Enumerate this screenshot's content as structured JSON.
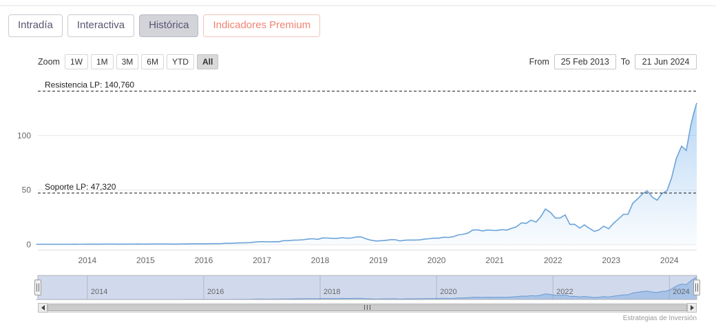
{
  "tabs": [
    {
      "label": "Intradía",
      "active": false,
      "premium": false
    },
    {
      "label": "Interactiva",
      "active": false,
      "premium": false
    },
    {
      "label": "Histórica",
      "active": true,
      "premium": false
    },
    {
      "label": "Indicadores Premium",
      "active": false,
      "premium": true
    }
  ],
  "range_selector": {
    "zoom_label": "Zoom",
    "buttons": [
      {
        "label": "1W",
        "selected": false
      },
      {
        "label": "1M",
        "selected": false
      },
      {
        "label": "3M",
        "selected": false
      },
      {
        "label": "6M",
        "selected": false
      },
      {
        "label": "YTD",
        "selected": false
      },
      {
        "label": "All",
        "selected": true
      }
    ],
    "from_label": "From",
    "from_value": "25 Feb 2013",
    "to_label": "To",
    "to_value": "21 Jun 2024"
  },
  "icons": {
    "scrollbar_left": "left-arrow",
    "scrollbar_right": "right-arrow",
    "scrollbar_grip": "grip-lines",
    "navigator_handle": "drag-handle"
  },
  "credits": "Estrategias de Inversión",
  "chart_data": {
    "type": "area",
    "title": "",
    "xlabel": "",
    "ylabel": "",
    "grid": true,
    "legend": false,
    "xlim": [
      2013.15,
      2024.47
    ],
    "ylim": [
      -5,
      145
    ],
    "yticks": [
      0,
      50,
      100
    ],
    "xticks": [
      2014,
      2015,
      2016,
      2017,
      2018,
      2019,
      2020,
      2021,
      2022,
      2023,
      2024
    ],
    "series_color": "#6ba3d9",
    "area_color": "#7cb5ec",
    "annotations": [
      {
        "name": "resistance",
        "label": "Resistencia LP: 140,760",
        "value": 140.76
      },
      {
        "name": "support",
        "label": "Soporte LP: 47,320",
        "value": 47.32
      }
    ],
    "x": [
      2013.12,
      2013.21,
      2013.29,
      2013.37,
      2013.46,
      2013.54,
      2013.62,
      2013.71,
      2013.79,
      2013.87,
      2013.96,
      2014.04,
      2014.12,
      2014.21,
      2014.29,
      2014.37,
      2014.46,
      2014.54,
      2014.62,
      2014.71,
      2014.79,
      2014.87,
      2014.96,
      2015.04,
      2015.12,
      2015.21,
      2015.29,
      2015.37,
      2015.46,
      2015.54,
      2015.62,
      2015.71,
      2015.79,
      2015.87,
      2015.96,
      2016.04,
      2016.12,
      2016.21,
      2016.29,
      2016.37,
      2016.46,
      2016.54,
      2016.62,
      2016.71,
      2016.79,
      2016.87,
      2016.96,
      2017.04,
      2017.12,
      2017.21,
      2017.29,
      2017.37,
      2017.46,
      2017.54,
      2017.62,
      2017.71,
      2017.79,
      2017.87,
      2017.96,
      2018.04,
      2018.12,
      2018.21,
      2018.29,
      2018.37,
      2018.46,
      2018.54,
      2018.62,
      2018.71,
      2018.79,
      2018.87,
      2018.96,
      2019.04,
      2019.12,
      2019.21,
      2019.29,
      2019.37,
      2019.46,
      2019.54,
      2019.62,
      2019.71,
      2019.79,
      2019.87,
      2019.96,
      2020.04,
      2020.12,
      2020.21,
      2020.29,
      2020.37,
      2020.46,
      2020.54,
      2020.62,
      2020.71,
      2020.79,
      2020.87,
      2020.96,
      2021.04,
      2021.12,
      2021.21,
      2021.29,
      2021.37,
      2021.46,
      2021.54,
      2021.62,
      2021.71,
      2021.79,
      2021.87,
      2021.96,
      2022.04,
      2022.12,
      2022.21,
      2022.29,
      2022.37,
      2022.46,
      2022.54,
      2022.62,
      2022.71,
      2022.79,
      2022.87,
      2022.96,
      2023.04,
      2023.12,
      2023.21,
      2023.29,
      2023.37,
      2023.46,
      2023.54,
      2023.62,
      2023.71,
      2023.79,
      2023.87,
      2023.96,
      2024.04,
      2024.12,
      2024.21,
      2024.29,
      2024.37,
      2024.42,
      2024.47
    ],
    "values": [
      0.31,
      0.33,
      0.34,
      0.35,
      0.36,
      0.35,
      0.37,
      0.38,
      0.39,
      0.37,
      0.4,
      0.39,
      0.45,
      0.45,
      0.46,
      0.47,
      0.46,
      0.44,
      0.49,
      0.47,
      0.48,
      0.52,
      0.5,
      0.49,
      0.55,
      0.52,
      0.55,
      0.55,
      0.5,
      0.49,
      0.56,
      0.61,
      0.71,
      0.79,
      0.82,
      0.73,
      0.79,
      0.89,
      0.89,
      1.17,
      1.17,
      1.43,
      1.53,
      1.71,
      1.78,
      2.3,
      2.67,
      2.72,
      2.53,
      2.72,
      2.61,
      3.61,
      3.61,
      4.06,
      4.23,
      4.47,
      5.17,
      5.37,
      4.84,
      6.14,
      6.05,
      5.79,
      5.62,
      6.29,
      5.92,
      6.12,
      7.01,
      7.02,
      5.27,
      4.09,
      3.34,
      3.59,
      3.86,
      4.49,
      4.53,
      3.39,
      4.1,
      4.21,
      4.19,
      4.35,
      5.02,
      5.42,
      5.88,
      5.91,
      6.76,
      6.59,
      7.31,
      8.87,
      9.5,
      10.61,
      13.37,
      13.53,
      12.53,
      13.4,
      13.06,
      13.0,
      13.72,
      13.35,
      15.01,
      16.25,
      20.0,
      19.48,
      22.39,
      20.71,
      25.56,
      32.65,
      29.41,
      24.44,
      24.36,
      27.28,
      18.55,
      18.67,
      15.16,
      18.16,
      15.09,
      12.14,
      13.49,
      16.9,
      14.61,
      19.52,
      23.22,
      27.78,
      27.75,
      37.83,
      42.3,
      46.72,
      49.35,
      43.5,
      40.78,
      46.77,
      49.52,
      61.53,
      79.1,
      90.36,
      86.4,
      109.63,
      121.0,
      130.0
    ],
    "navigator": {
      "xticks": [
        2014,
        2016,
        2018,
        2020,
        2022,
        2024
      ],
      "ylim": [
        0,
        140
      ],
      "mask_color": "rgba(102,133,194,0.3)",
      "outline_color": "#b2b1b6"
    }
  }
}
